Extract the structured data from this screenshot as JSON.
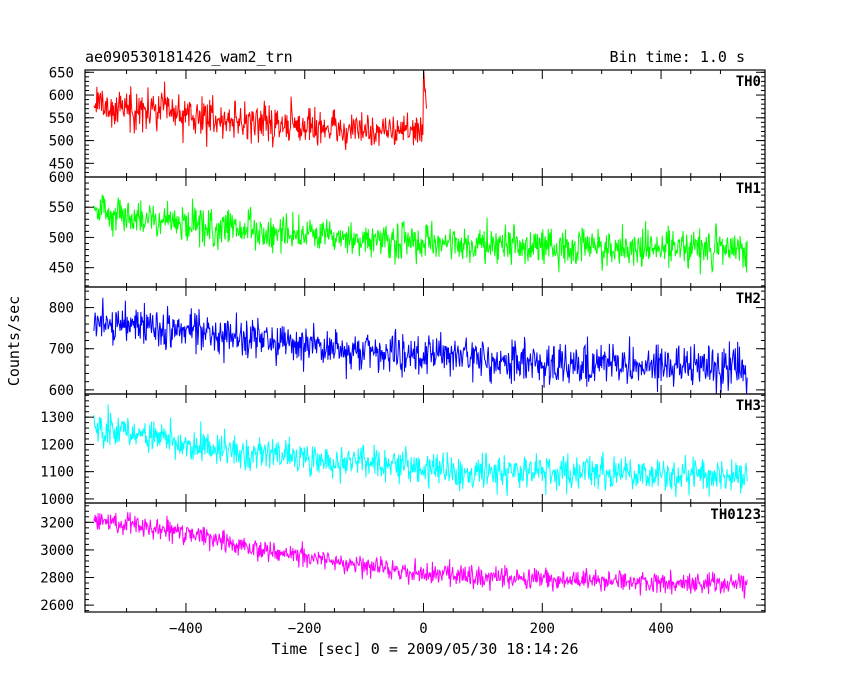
{
  "header": {
    "left_title": "ae090530181426_wam2_trn",
    "right_title": "Bin time: 1.0 s"
  },
  "chart_data": {
    "type": "line",
    "title": "ae090530181426_wam2_trn",
    "subtitle": "Bin time: 1.0 s",
    "xlabel": "Time [sec] 0 = 2009/05/30 18:14:26",
    "ylabel": "Counts/sec",
    "xlim": [
      -570,
      575
    ],
    "x_ticks": [
      -400,
      -200,
      0,
      200,
      400
    ],
    "x_tick_labels": [
      "−400",
      "−200",
      "0",
      "200",
      "400"
    ],
    "grid": false,
    "bin_time_s": 1.0,
    "panels": [
      {
        "name": "TH0",
        "color": "#ff0000",
        "ylim": [
          420,
          655
        ],
        "yticks": [
          450,
          500,
          550,
          600,
          650
        ],
        "noise": 30,
        "baseline": [
          [
            -555,
            578
          ],
          [
            -450,
            565
          ],
          [
            -320,
            545
          ],
          [
            -200,
            530
          ],
          [
            -50,
            522
          ],
          [
            -10,
            520
          ],
          [
            10,
            530
          ],
          [
            100,
            520
          ],
          [
            300,
            515
          ],
          [
            545,
            518
          ]
        ],
        "features": [
          {
            "x_range": [
              0,
              6
            ],
            "values": [
              655,
              640,
              620,
              605,
              590,
              575
            ]
          }
        ]
      },
      {
        "name": "TH1",
        "color": "#00ff00",
        "ylim": [
          418,
          600
        ],
        "yticks": [
          450,
          500,
          550,
          600
        ],
        "noise": 22,
        "baseline": [
          [
            -555,
            545
          ],
          [
            -450,
            527
          ],
          [
            -300,
            512
          ],
          [
            -150,
            497
          ],
          [
            0,
            490
          ],
          [
            200,
            485
          ],
          [
            545,
            482
          ]
        ]
      },
      {
        "name": "TH2",
        "color": "#0000ff",
        "ylim": [
          590,
          850
        ],
        "yticks": [
          600,
          700,
          800
        ],
        "noise": 35,
        "baseline": [
          [
            -555,
            768
          ],
          [
            -450,
            752
          ],
          [
            -300,
            727
          ],
          [
            -150,
            700
          ],
          [
            0,
            683
          ],
          [
            200,
            665
          ],
          [
            400,
            657
          ],
          [
            545,
            652
          ]
        ]
      },
      {
        "name": "TH3",
        "color": "#00ffff",
        "ylim": [
          985,
          1385
        ],
        "yticks": [
          1000,
          1100,
          1200,
          1300
        ],
        "noise": 45,
        "baseline": [
          [
            -555,
            1265
          ],
          [
            -450,
            1220
          ],
          [
            -300,
            1175
          ],
          [
            -150,
            1138
          ],
          [
            0,
            1112
          ],
          [
            200,
            1098
          ],
          [
            400,
            1088
          ],
          [
            545,
            1082
          ]
        ]
      },
      {
        "name": "TH0123",
        "color": "#ff00ff",
        "ylim": [
          2550,
          3340
        ],
        "yticks": [
          2600,
          2800,
          3000,
          3200
        ],
        "noise": 55,
        "baseline": [
          [
            -555,
            3220
          ],
          [
            -400,
            3130
          ],
          [
            -250,
            2980
          ],
          [
            -100,
            2880
          ],
          [
            0,
            2830
          ],
          [
            200,
            2790
          ],
          [
            400,
            2760
          ],
          [
            545,
            2755
          ]
        ]
      }
    ]
  }
}
